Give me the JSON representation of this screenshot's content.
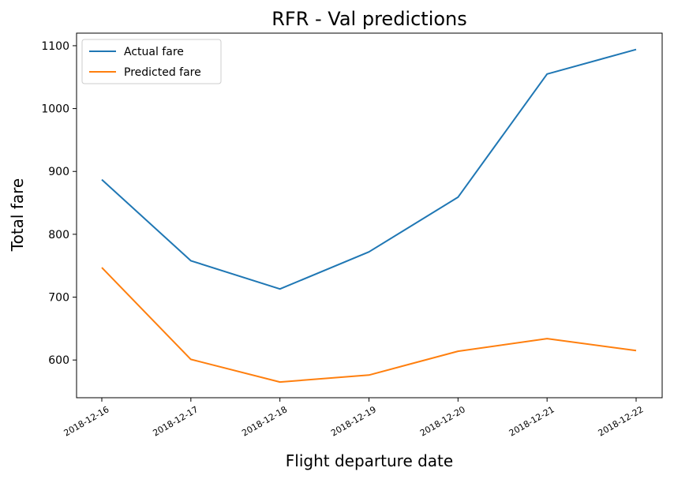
{
  "chart_data": {
    "type": "line",
    "title": "RFR - Val predictions",
    "xlabel": "Flight departure date",
    "ylabel": "Total fare",
    "x": [
      "2018-12-16",
      "2018-12-17",
      "2018-12-18",
      "2018-12-19",
      "2018-12-20",
      "2018-12-21",
      "2018-12-22"
    ],
    "series": [
      {
        "name": "Actual fare",
        "color": "#1f77b4",
        "values": [
          887,
          758,
          713,
          772,
          859,
          1055,
          1094
        ]
      },
      {
        "name": "Predicted fare",
        "color": "#ff7f0e",
        "values": [
          747,
          601,
          565,
          576,
          614,
          634,
          615
        ]
      }
    ],
    "yticks": [
      600,
      700,
      800,
      900,
      1000,
      1100
    ],
    "ylim": [
      540,
      1120
    ],
    "grid": false,
    "legend": "upper-left"
  }
}
